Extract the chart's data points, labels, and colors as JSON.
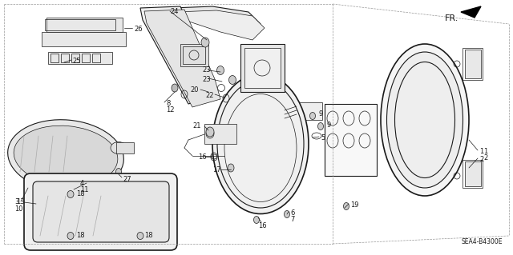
{
  "background_color": "#ffffff",
  "line_color": "#1a1a1a",
  "diagram_code": "SEA4-B4300E",
  "fr_label": "FR.",
  "border_color": "#888888"
}
